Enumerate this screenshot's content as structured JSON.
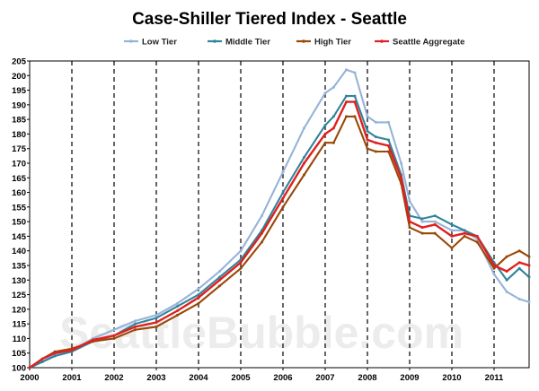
{
  "chart_data": {
    "type": "line",
    "title": "Case-Shiller Tiered Index - Seattle",
    "watermark": "SeattleBubble.com",
    "x_tick_labels": [
      "2000",
      "2001",
      "2002",
      "2003",
      "2004",
      "2005",
      "2006",
      "2007",
      "2008",
      "2009",
      "2010",
      "2011"
    ],
    "xlim": [
      2000.0,
      2011.83
    ],
    "ylim": [
      100,
      205
    ],
    "y_tick_step": 5,
    "grid": "dashed vertical lines at each year",
    "legend_position": "top-center",
    "series": [
      {
        "name": "Low Tier",
        "color": "#95b3d7",
        "points": [
          [
            2000.0,
            100
          ],
          [
            2000.3,
            102
          ],
          [
            2000.6,
            104.5
          ],
          [
            2001.0,
            106
          ],
          [
            2001.5,
            110
          ],
          [
            2002.0,
            113
          ],
          [
            2002.5,
            116
          ],
          [
            2003.0,
            118
          ],
          [
            2003.5,
            122
          ],
          [
            2004.0,
            127
          ],
          [
            2004.5,
            133
          ],
          [
            2005.0,
            140
          ],
          [
            2005.5,
            152
          ],
          [
            2006.0,
            167
          ],
          [
            2006.5,
            182
          ],
          [
            2007.0,
            194
          ],
          [
            2007.2,
            196
          ],
          [
            2007.5,
            202
          ],
          [
            2007.7,
            201
          ],
          [
            2008.0,
            186
          ],
          [
            2008.2,
            184
          ],
          [
            2008.5,
            184
          ],
          [
            2008.8,
            170
          ],
          [
            2009.0,
            157
          ],
          [
            2009.3,
            150
          ],
          [
            2009.6,
            150
          ],
          [
            2010.0,
            147
          ],
          [
            2010.3,
            147
          ],
          [
            2010.6,
            144
          ],
          [
            2011.0,
            132
          ],
          [
            2011.3,
            126
          ],
          [
            2011.6,
            123.5
          ],
          [
            2011.83,
            122.5
          ]
        ]
      },
      {
        "name": "Middle Tier",
        "color": "#31849b",
        "points": [
          [
            2000.0,
            100
          ],
          [
            2000.3,
            102
          ],
          [
            2000.6,
            104
          ],
          [
            2001.0,
            105.5
          ],
          [
            2001.5,
            109
          ],
          [
            2002.0,
            111
          ],
          [
            2002.5,
            115
          ],
          [
            2003.0,
            117
          ],
          [
            2003.5,
            121
          ],
          [
            2004.0,
            125
          ],
          [
            2004.5,
            131
          ],
          [
            2005.0,
            137
          ],
          [
            2005.5,
            147
          ],
          [
            2006.0,
            160
          ],
          [
            2006.5,
            172
          ],
          [
            2007.0,
            183
          ],
          [
            2007.2,
            186
          ],
          [
            2007.5,
            193
          ],
          [
            2007.7,
            193
          ],
          [
            2008.0,
            181
          ],
          [
            2008.2,
            179
          ],
          [
            2008.5,
            178
          ],
          [
            2008.8,
            166
          ],
          [
            2009.0,
            152
          ],
          [
            2009.3,
            151
          ],
          [
            2009.6,
            152
          ],
          [
            2010.0,
            149
          ],
          [
            2010.3,
            147
          ],
          [
            2010.6,
            145
          ],
          [
            2011.0,
            136
          ],
          [
            2011.3,
            130
          ],
          [
            2011.6,
            134
          ],
          [
            2011.83,
            131
          ]
        ]
      },
      {
        "name": "High Tier",
        "color": "#984807",
        "points": [
          [
            2000.0,
            100
          ],
          [
            2000.3,
            103
          ],
          [
            2000.6,
            105.5
          ],
          [
            2001.0,
            106.5
          ],
          [
            2001.5,
            109
          ],
          [
            2002.0,
            110
          ],
          [
            2002.5,
            113
          ],
          [
            2003.0,
            114
          ],
          [
            2003.5,
            118
          ],
          [
            2004.0,
            122
          ],
          [
            2004.5,
            128
          ],
          [
            2005.0,
            134
          ],
          [
            2005.5,
            143
          ],
          [
            2006.0,
            155
          ],
          [
            2006.5,
            166
          ],
          [
            2007.0,
            177
          ],
          [
            2007.2,
            177
          ],
          [
            2007.5,
            186
          ],
          [
            2007.7,
            186
          ],
          [
            2008.0,
            175
          ],
          [
            2008.2,
            174
          ],
          [
            2008.5,
            174
          ],
          [
            2008.8,
            163
          ],
          [
            2009.0,
            148
          ],
          [
            2009.3,
            146
          ],
          [
            2009.6,
            146
          ],
          [
            2010.0,
            141
          ],
          [
            2010.3,
            145
          ],
          [
            2010.6,
            143
          ],
          [
            2011.0,
            134
          ],
          [
            2011.3,
            138
          ],
          [
            2011.6,
            140
          ],
          [
            2011.83,
            138
          ]
        ]
      },
      {
        "name": "Seattle Aggregate",
        "color": "#e02020",
        "points": [
          [
            2000.0,
            100
          ],
          [
            2000.3,
            103
          ],
          [
            2000.6,
            105
          ],
          [
            2001.0,
            106
          ],
          [
            2001.5,
            109.5
          ],
          [
            2002.0,
            111
          ],
          [
            2002.5,
            114
          ],
          [
            2003.0,
            115.5
          ],
          [
            2003.5,
            119.5
          ],
          [
            2004.0,
            124
          ],
          [
            2004.5,
            130
          ],
          [
            2005.0,
            136
          ],
          [
            2005.5,
            146
          ],
          [
            2006.0,
            158
          ],
          [
            2006.5,
            170
          ],
          [
            2007.0,
            180
          ],
          [
            2007.2,
            182
          ],
          [
            2007.5,
            191
          ],
          [
            2007.7,
            191
          ],
          [
            2008.0,
            178
          ],
          [
            2008.2,
            177
          ],
          [
            2008.5,
            176
          ],
          [
            2008.8,
            165
          ],
          [
            2009.0,
            150
          ],
          [
            2009.3,
            148
          ],
          [
            2009.6,
            149
          ],
          [
            2010.0,
            145
          ],
          [
            2010.3,
            146
          ],
          [
            2010.6,
            145
          ],
          [
            2011.0,
            135
          ],
          [
            2011.3,
            133
          ],
          [
            2011.6,
            136
          ],
          [
            2011.83,
            135
          ]
        ]
      }
    ]
  }
}
